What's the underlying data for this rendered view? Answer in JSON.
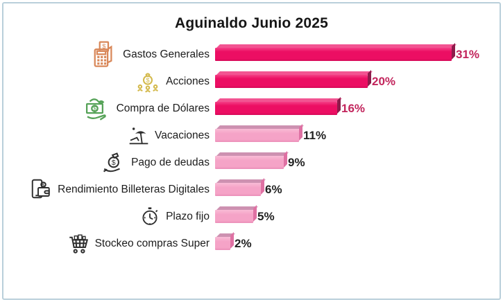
{
  "chart_data": {
    "type": "bar",
    "orientation": "horizontal",
    "title": "Aguinaldo Junio 2025",
    "xlabel": "",
    "ylabel": "",
    "value_unit": "%",
    "xlim": [
      0,
      35
    ],
    "grid": false,
    "legend": false,
    "categories": [
      "Gastos Generales",
      "Acciones",
      "Compra de Dólares",
      "Vacaciones",
      "Pago de deudas",
      "Rendimiento Billeteras Digitales",
      "Plazo fijo",
      "Stockeo compras Super"
    ],
    "values": [
      31,
      20,
      16,
      11,
      9,
      6,
      5,
      2
    ],
    "rows": [
      {
        "label": "Gastos Generales",
        "value": 31,
        "value_label": "31%",
        "tone": "dark",
        "icon": "pos-terminal-icon"
      },
      {
        "label": "Acciones",
        "value": 20,
        "value_label": "20%",
        "tone": "dark",
        "icon": "money-bag-people-icon"
      },
      {
        "label": "Compra de Dólares",
        "value": 16,
        "value_label": "16%",
        "tone": "dark",
        "icon": "money-in-hand-icon"
      },
      {
        "label": "Vacaciones",
        "value": 11,
        "value_label": "11%",
        "tone": "light",
        "icon": "beach-umbrella-icon"
      },
      {
        "label": "Pago de deudas",
        "value": 9,
        "value_label": "9%",
        "tone": "light",
        "icon": "hand-money-bag-icon"
      },
      {
        "label": "Rendimiento Billeteras Digitales",
        "value": 6,
        "value_label": "6%",
        "tone": "light",
        "icon": "phone-wallet-icon"
      },
      {
        "label": "Plazo fijo",
        "value": 5,
        "value_label": "5%",
        "tone": "light",
        "icon": "stopwatch-icon"
      },
      {
        "label": "Stockeo compras Super",
        "value": 2,
        "value_label": "2%",
        "tone": "light",
        "icon": "shopping-cart-icon"
      }
    ],
    "colors": {
      "bar_dark": "#ec0e63",
      "bar_dark_side": "#8e1b4b",
      "bar_light": "#f5a3c7",
      "bar_light_side": "#df71a3",
      "value_label_dark_rows": "#c2255c",
      "value_label_light_rows": "#222222",
      "frame_border": "#b9cfda",
      "icon_orange": "#d9885a",
      "icon_gold": "#d4ba4e",
      "icon_green": "#55a257",
      "icon_black": "#2e2e2e"
    }
  }
}
